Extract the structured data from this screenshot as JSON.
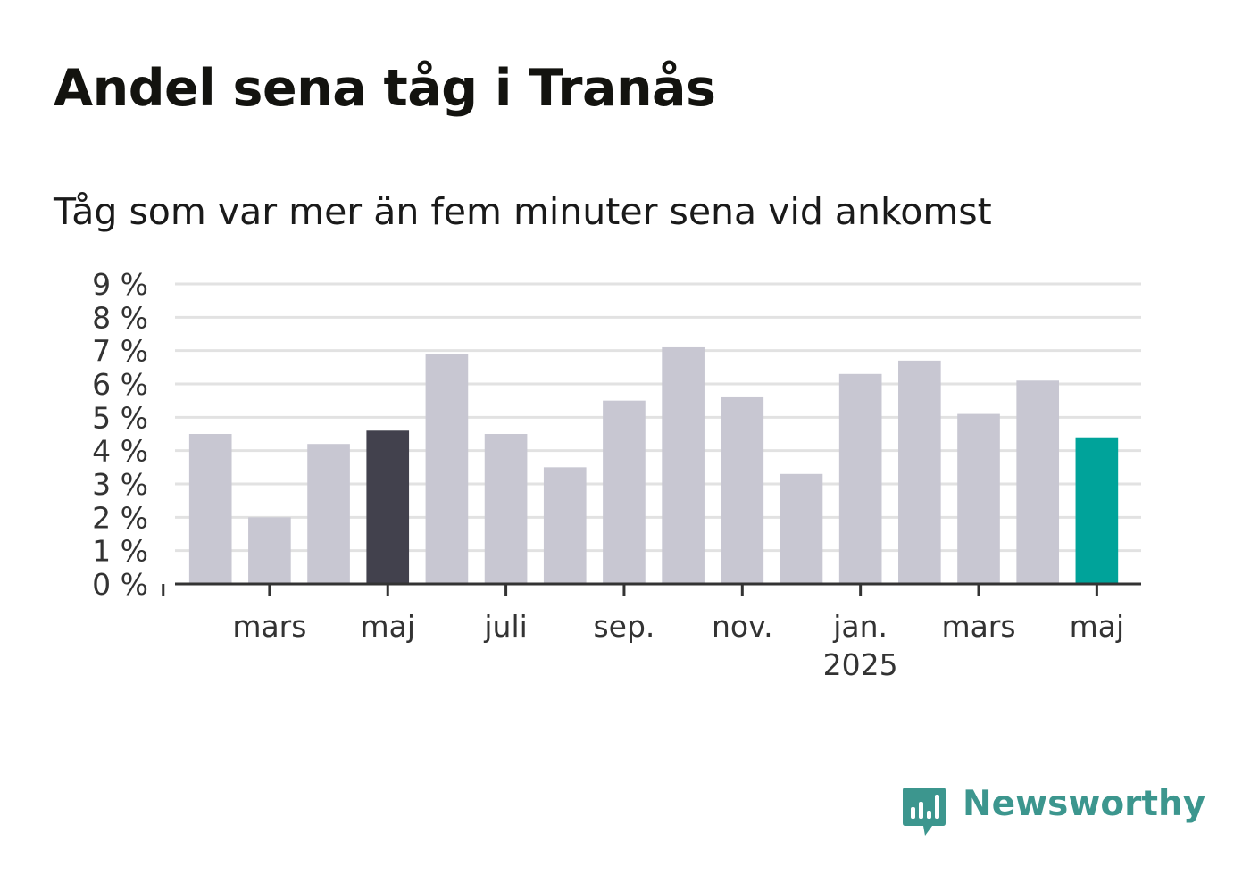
{
  "title": "Andel sena tåg i Tranås",
  "subtitle": "Tåg som var mer än fem minuter sena vid ankomst",
  "brand": {
    "name": "Newsworthy",
    "icon": "newsworthy-logo-icon",
    "color": "#3c968e"
  },
  "colors": {
    "bar_default": "#c8c7d2",
    "bar_highlight_dark": "#42414d",
    "bar_highlight_accent": "#00a39a",
    "gridline": "#e2e2e2",
    "axis": "#333333",
    "tick_label": "#333333"
  },
  "chart_data": {
    "type": "bar",
    "title": "Andel sena tåg i Tranås",
    "subtitle": "Tåg som var mer än fem minuter sena vid ankomst",
    "xlabel": "",
    "ylabel": "",
    "ylim": [
      0,
      9
    ],
    "y_ticks": [
      0,
      1,
      2,
      3,
      4,
      5,
      6,
      7,
      8,
      9
    ],
    "y_tick_labels": [
      "0 %",
      "1 %",
      "2 %",
      "3 %",
      "4 %",
      "5 %",
      "6 %",
      "7 %",
      "8 %",
      "9 %"
    ],
    "grid": true,
    "categories": [
      "2024-02",
      "2024-03",
      "2024-04",
      "2024-05",
      "2024-06",
      "2024-07",
      "2024-08",
      "2024-09",
      "2024-10",
      "2024-11",
      "2024-12",
      "2025-01",
      "2025-02",
      "2025-03",
      "2025-04",
      "2025-05"
    ],
    "values": [
      4.5,
      2.0,
      4.2,
      4.6,
      6.9,
      4.5,
      3.5,
      5.5,
      7.1,
      5.6,
      3.3,
      6.3,
      6.7,
      5.1,
      6.1,
      4.4
    ],
    "highlight": {
      "2024-05": "bar_highlight_dark",
      "2025-05": "bar_highlight_accent"
    },
    "x_tick_labels": [
      {
        "category": "2024-03",
        "label": "mars",
        "sublabel": ""
      },
      {
        "category": "2024-05",
        "label": "maj",
        "sublabel": ""
      },
      {
        "category": "2024-07",
        "label": "juli",
        "sublabel": ""
      },
      {
        "category": "2024-09",
        "label": "sep.",
        "sublabel": ""
      },
      {
        "category": "2024-11",
        "label": "nov.",
        "sublabel": ""
      },
      {
        "category": "2025-01",
        "label": "jan.",
        "sublabel": "2025"
      },
      {
        "category": "2025-03",
        "label": "mars",
        "sublabel": ""
      },
      {
        "category": "2025-05",
        "label": "maj",
        "sublabel": ""
      }
    ]
  }
}
